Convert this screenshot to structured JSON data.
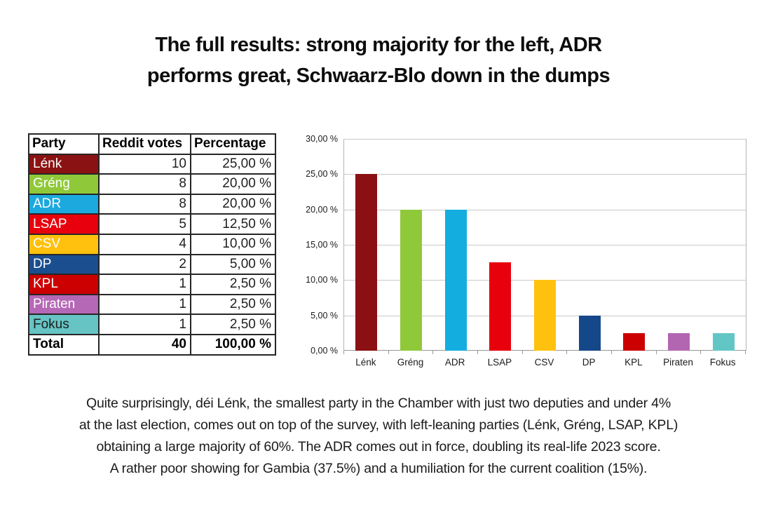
{
  "title": {
    "line1": "The full results: strong majority for the left, ADR",
    "line2": "performs great, Schwaarz-Blo down in the dumps"
  },
  "table": {
    "columns": [
      "Party",
      "Reddit votes",
      "Percentage"
    ],
    "rows": [
      {
        "party": "Lénk",
        "votes": "10",
        "percentage": "25,00 %",
        "bg": "#8B1212",
        "fg": "#FFFFFF",
        "bold": false
      },
      {
        "party": "Gréng",
        "votes": "8",
        "percentage": "20,00 %",
        "bg": "#8FC93A",
        "fg": "#FFFFFF",
        "bold": false
      },
      {
        "party": "ADR",
        "votes": "8",
        "percentage": "20,00 %",
        "bg": "#1CA9DE",
        "fg": "#FFFFFF",
        "bold": false
      },
      {
        "party": "LSAP",
        "votes": "5",
        "percentage": "12,50 %",
        "bg": "#E8000D",
        "fg": "#FFFFFF",
        "bold": false
      },
      {
        "party": "CSV",
        "votes": "4",
        "percentage": "10,00 %",
        "bg": "#FFC10E",
        "fg": "#FFFFFF",
        "bold": false
      },
      {
        "party": "DP",
        "votes": "2",
        "percentage": "5,00 %",
        "bg": "#1B4E8E",
        "fg": "#FFFFFF",
        "bold": false
      },
      {
        "party": "KPL",
        "votes": "1",
        "percentage": "2,50 %",
        "bg": "#CC0001",
        "fg": "#FFFFFF",
        "bold": false
      },
      {
        "party": "Piraten",
        "votes": "1",
        "percentage": "2,50 %",
        "bg": "#B568B5",
        "fg": "#FFFFFF",
        "bold": false
      },
      {
        "party": "Fokus",
        "votes": "1",
        "percentage": "2,50 %",
        "bg": "#66C4C4",
        "fg": "#1d1d1d",
        "bold": false
      },
      {
        "party": "Total",
        "votes": "40",
        "percentage": "100,00 %",
        "bg": "#FFFFFF",
        "fg": "#000000",
        "bold": true
      }
    ]
  },
  "chart_data": {
    "type": "bar",
    "title": "",
    "xlabel": "",
    "ylabel": "",
    "categories": [
      "Lénk",
      "Gréng",
      "ADR",
      "LSAP",
      "CSV",
      "DP",
      "KPL",
      "Piraten",
      "Fokus"
    ],
    "values": [
      25,
      20,
      20,
      12.5,
      10,
      5,
      2.5,
      2.5,
      2.5
    ],
    "bar_colors": [
      "#8B1013",
      "#8FC93A",
      "#14ADDF",
      "#E8000D",
      "#FFC10E",
      "#154889",
      "#CC0000",
      "#B266B2",
      "#63C6C6"
    ],
    "ylim": [
      0,
      30
    ],
    "ytick_step": 5,
    "ytick_labels": [
      "0,00 %",
      "5,00 %",
      "10,00 %",
      "15,00 %",
      "20,00 %",
      "25,00 %",
      "30,00 %"
    ],
    "grid": true,
    "legend_position": "none"
  },
  "footer": {
    "lines": [
      "Quite surprisingly, déi Lénk, the smallest party in the Chamber with just two deputies and under 4%",
      "at the last election, comes out on top of the survey, with left-leaning parties (Lénk, Gréng, LSAP, KPL)",
      "obtaining a large majority of 60%. The ADR comes out in force, doubling its real-life 2023 score.",
      "A rather poor showing for Gambia (37.5%) and a humiliation for the current coalition (15%)."
    ]
  }
}
